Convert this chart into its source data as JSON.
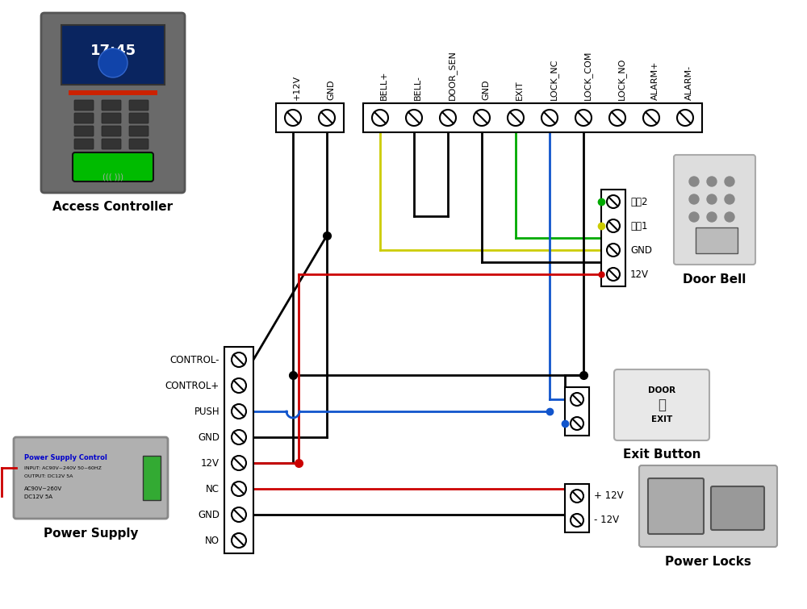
{
  "bg_color": "#ffffff",
  "ct_labels": [
    "+12V",
    "GND",
    "BELL+",
    "BELL-",
    "DOOR_SEN",
    "GND",
    "EXIT",
    "LOCK_NC",
    "LOCK_COM",
    "LOCK_NO",
    "ALARM+",
    "ALARM-"
  ],
  "psu_labels": [
    "CONTROL-",
    "CONTROL+",
    "PUSH",
    "GND",
    "12V",
    "NC",
    "GND",
    "NO"
  ],
  "db_labels": [
    "信号2",
    "信号1",
    "GND",
    "12V"
  ],
  "eb_labels": [
    "",
    ""
  ],
  "lk_labels": [
    "+ 12V",
    "- 12V"
  ],
  "device_labels": {
    "access_controller": "Access Controller",
    "door_bell": "Door Bell",
    "exit_button": "Exit Button",
    "power_supply": "Power Supply",
    "power_locks": "Power Locks"
  },
  "colors": {
    "black": "#000000",
    "red": "#cc0000",
    "yellow": "#cccc00",
    "green": "#00aa00",
    "blue": "#1155cc",
    "gray_dark": "#555555",
    "gray_med": "#888888",
    "gray_light": "#cccccc",
    "gray_device": "#aaaaaa",
    "green_fp": "#00cc00",
    "blue_screen": "#1a3a8e",
    "white": "#ffffff"
  },
  "lw": 2.0,
  "lw_thick": 2.5
}
